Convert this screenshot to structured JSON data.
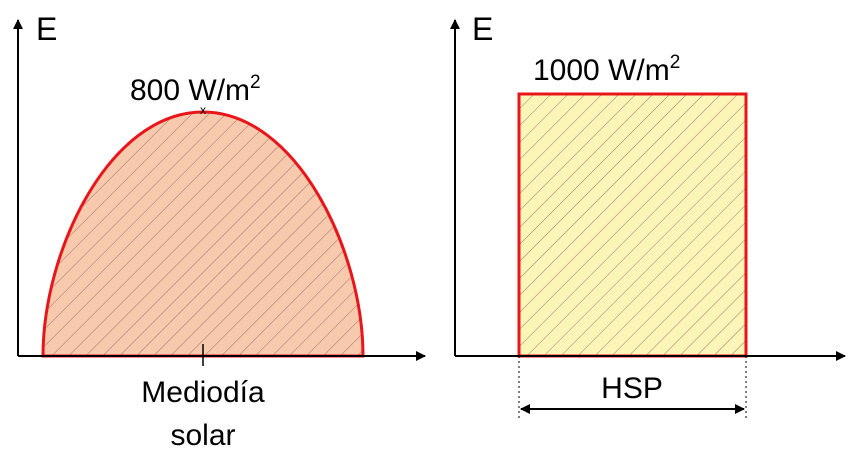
{
  "left_panel": {
    "axis_label": "E",
    "peak_base": "800 W/m",
    "peak_sup": "2",
    "x_label_line1": "Mediodía",
    "x_label_line2": "solar"
  },
  "right_panel": {
    "axis_label": "E",
    "level_base": "1000 W/m",
    "level_sup": "2",
    "span_label": "HSP"
  },
  "colors": {
    "curve_stroke": "#e8161b",
    "left_fill": "#f7c9ad",
    "right_fill": "#fbf5b8",
    "hatch": "#8a5a5a",
    "axis": "#000000"
  }
}
